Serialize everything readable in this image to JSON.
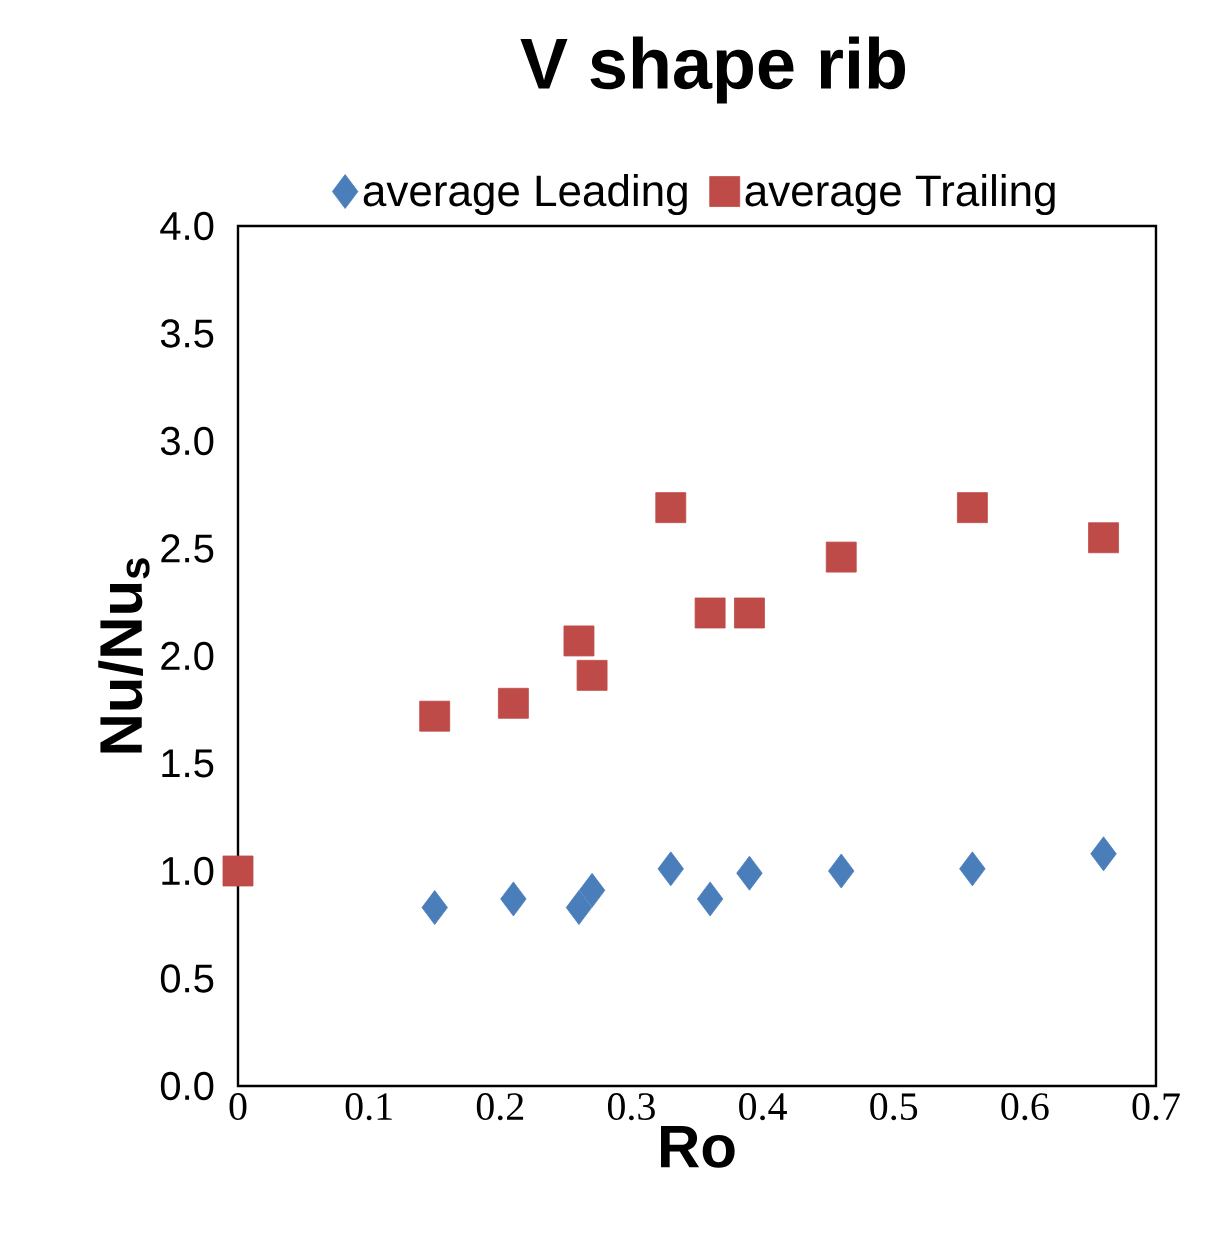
{
  "chart_data": {
    "type": "scatter",
    "title": "V shape  rib",
    "xlabel": "Ro",
    "ylabel": "Nu/Nu$_{s}$",
    "xlim": [
      0,
      0.7
    ],
    "xticks": [
      0,
      0.1,
      0.2,
      0.3,
      0.4,
      0.5,
      0.6,
      0.7
    ],
    "ylim": [
      0,
      4
    ],
    "yticks": [
      {
        "value": 0,
        "label": "0.0"
      },
      {
        "value": 0.5,
        "label": "0.5"
      },
      {
        "value": 1,
        "label": "1.0"
      },
      {
        "value": 1.5,
        "label": "1.5"
      },
      {
        "value": 2,
        "label": "2.0"
      },
      {
        "value": 2.5,
        "label": "2.5"
      },
      {
        "value": 3,
        "label": "3.0"
      },
      {
        "value": 3.5,
        "label": "3.5"
      },
      {
        "value": 4,
        "label": "4.0"
      }
    ],
    "grid": false,
    "legend": "top",
    "series": [
      {
        "name": "average Leading",
        "color": "#4a7ebb",
        "marker": "diamond",
        "x": [
          0.15,
          0.21,
          0.26,
          0.27,
          0.33,
          0.36,
          0.39,
          0.46,
          0.56,
          0.66
        ],
        "values": [
          0.83,
          0.87,
          0.83,
          0.91,
          1.01,
          0.87,
          0.99,
          1.0,
          1.01,
          1.08
        ]
      },
      {
        "name": "average Trailing",
        "color": "#be4b48",
        "marker": "square",
        "x": [
          0,
          0.15,
          0.21,
          0.26,
          0.27,
          0.33,
          0.36,
          0.39,
          0.46,
          0.56,
          0.66
        ],
        "values": [
          1.0,
          1.72,
          1.78,
          2.07,
          1.91,
          2.69,
          2.2,
          2.2,
          2.46,
          2.69,
          2.55
        ]
      }
    ]
  }
}
